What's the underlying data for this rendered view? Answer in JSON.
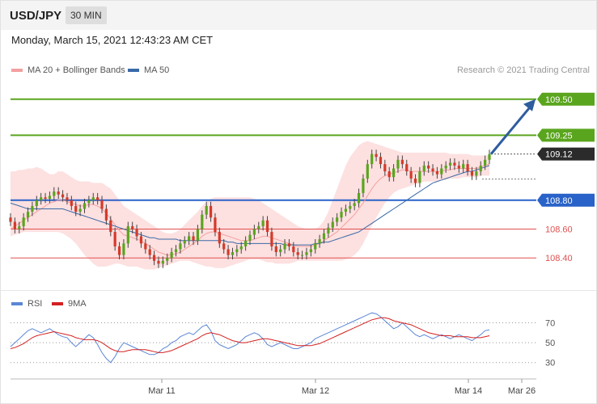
{
  "header": {
    "symbol": "USD/JPY",
    "timeframe": "30 MIN",
    "timestamp": "Monday, March 15, 2021 12:43:23 AM CET",
    "credit": "Research © 2021 Trading Central"
  },
  "legend_main": [
    {
      "label": "MA 20 + Bollinger Bands",
      "color": "#f4a0a0"
    },
    {
      "label": "MA 50",
      "color": "#3a6aa8"
    }
  ],
  "legend_rsi": [
    {
      "label": "RSI",
      "color": "#5b86d6"
    },
    {
      "label": "9MA",
      "color": "#d42020"
    }
  ],
  "colors": {
    "resistance": "#5aa51e",
    "pivot": "#2962c8",
    "support": "#e05050",
    "current": "#2b2b2b",
    "arrow": "#2e5d9e",
    "candle_up": "#5aa51e",
    "candle_down": "#d43a2a",
    "band_fill": "#fde0e0"
  },
  "chart_data": [
    {
      "type": "candlestick",
      "title": "USD/JPY",
      "x_ticks": [
        "Mar 11",
        "Mar 12",
        "Mar 14",
        "Mar 26"
      ],
      "ylim": [
        108.25,
        109.65
      ],
      "levels": [
        {
          "label": "109.50",
          "value": 109.5,
          "kind": "resistance"
        },
        {
          "label": "109.25",
          "value": 109.25,
          "kind": "resistance"
        },
        {
          "label": "109.12",
          "value": 109.12,
          "kind": "current"
        },
        {
          "label": "108.80",
          "value": 108.8,
          "kind": "pivot"
        },
        {
          "label": "108.60",
          "value": 108.6,
          "kind": "support"
        },
        {
          "label": "108.40",
          "value": 108.4,
          "kind": "support"
        }
      ],
      "close": [
        108.65,
        108.6,
        108.62,
        108.68,
        108.72,
        108.76,
        108.8,
        108.82,
        108.81,
        108.83,
        108.86,
        108.84,
        108.82,
        108.8,
        108.76,
        108.72,
        108.74,
        108.78,
        108.8,
        108.82,
        108.8,
        108.74,
        108.66,
        108.58,
        108.48,
        108.42,
        108.5,
        108.62,
        108.6,
        108.55,
        108.5,
        108.46,
        108.42,
        108.38,
        108.36,
        108.38,
        108.4,
        108.44,
        108.46,
        108.5,
        108.52,
        108.55,
        108.52,
        108.6,
        108.7,
        108.76,
        108.68,
        108.58,
        108.5,
        108.46,
        108.42,
        108.44,
        108.46,
        108.48,
        108.52,
        108.56,
        108.6,
        108.62,
        108.66,
        108.58,
        108.48,
        108.44,
        108.46,
        108.5,
        108.48,
        108.44,
        108.42,
        108.42,
        108.44,
        108.46,
        108.5,
        108.53,
        108.57,
        108.61,
        108.65,
        108.68,
        108.72,
        108.74,
        108.76,
        108.78,
        108.85,
        108.95,
        109.05,
        109.12,
        109.1,
        109.05,
        109.0,
        108.96,
        109.02,
        109.08,
        109.05,
        109.0,
        108.95,
        108.92,
        109.0,
        109.04,
        109.02,
        109.0,
        108.98,
        109.02,
        109.04,
        109.06,
        109.04,
        109.02,
        109.05,
        109.0,
        108.97,
        109.0,
        109.04,
        109.08,
        109.12
      ],
      "open": [
        108.68,
        108.65,
        108.6,
        108.62,
        108.68,
        108.72,
        108.76,
        108.8,
        108.82,
        108.81,
        108.83,
        108.86,
        108.84,
        108.82,
        108.8,
        108.76,
        108.72,
        108.74,
        108.78,
        108.8,
        108.82,
        108.8,
        108.74,
        108.66,
        108.58,
        108.48,
        108.42,
        108.5,
        108.62,
        108.6,
        108.55,
        108.5,
        108.46,
        108.42,
        108.38,
        108.36,
        108.38,
        108.4,
        108.44,
        108.46,
        108.5,
        108.52,
        108.55,
        108.52,
        108.6,
        108.7,
        108.76,
        108.68,
        108.58,
        108.5,
        108.46,
        108.42,
        108.44,
        108.46,
        108.48,
        108.52,
        108.56,
        108.6,
        108.62,
        108.66,
        108.58,
        108.48,
        108.44,
        108.46,
        108.5,
        108.48,
        108.44,
        108.42,
        108.42,
        108.44,
        108.46,
        108.5,
        108.53,
        108.57,
        108.61,
        108.65,
        108.68,
        108.72,
        108.74,
        108.76,
        108.78,
        108.85,
        108.95,
        109.05,
        109.12,
        109.1,
        109.05,
        109.0,
        108.96,
        109.02,
        109.08,
        109.05,
        109.0,
        108.95,
        108.92,
        109.0,
        109.04,
        109.02,
        109.0,
        108.98,
        109.02,
        109.04,
        109.06,
        109.04,
        109.02,
        109.05,
        109.0,
        108.97,
        109.0,
        109.04,
        109.08
      ],
      "ma20": [
        108.6,
        108.62,
        108.64,
        108.66,
        108.68,
        108.7,
        108.72,
        108.74,
        108.76,
        108.78,
        108.79,
        108.8,
        108.8,
        108.79,
        108.78,
        108.77,
        108.76,
        108.76,
        108.77,
        108.77,
        108.76,
        108.74,
        108.71,
        108.67,
        108.63,
        108.59,
        108.56,
        108.55,
        108.54,
        108.53,
        108.52,
        108.5,
        108.48,
        108.46,
        108.44,
        108.43,
        108.42,
        108.42,
        108.43,
        108.44,
        108.46,
        108.48,
        108.5,
        108.52,
        108.55,
        108.57,
        108.58,
        108.58,
        108.57,
        108.56,
        108.55,
        108.54,
        108.53,
        108.52,
        108.52,
        108.52,
        108.53,
        108.54,
        108.55,
        108.55,
        108.54,
        108.53,
        108.52,
        108.51,
        108.5,
        108.49,
        108.48,
        108.48,
        108.48,
        108.48,
        108.49,
        108.5,
        108.52,
        108.54,
        108.56,
        108.58,
        108.61,
        108.64,
        108.67,
        108.7,
        108.74,
        108.78,
        108.83,
        108.88,
        108.92,
        108.95,
        108.97,
        108.98,
        108.99,
        109.0,
        109.01,
        109.01,
        109.0,
        109.0,
        109.0,
        109.0,
        109.0,
        109.0,
        109.0,
        109.0,
        109.01,
        109.01,
        109.02,
        109.02,
        109.02,
        109.02,
        109.02,
        109.02,
        109.03,
        109.04,
        109.05
      ],
      "ma50": [
        108.78,
        108.77,
        108.76,
        108.75,
        108.74,
        108.74,
        108.74,
        108.74,
        108.74,
        108.74,
        108.74,
        108.74,
        108.74,
        108.73,
        108.72,
        108.71,
        108.7,
        108.69,
        108.68,
        108.67,
        108.66,
        108.65,
        108.64,
        108.63,
        108.62,
        108.61,
        108.6,
        108.59,
        108.58,
        108.57,
        108.56,
        108.55,
        108.54,
        108.54,
        108.53,
        108.53,
        108.53,
        108.53,
        108.53,
        108.52,
        108.52,
        108.52,
        108.52,
        108.52,
        108.52,
        108.52,
        108.52,
        108.52,
        108.52,
        108.52,
        108.51,
        108.51,
        108.5,
        108.5,
        108.5,
        108.5,
        108.5,
        108.5,
        108.5,
        108.5,
        108.5,
        108.5,
        108.5,
        108.49,
        108.49,
        108.49,
        108.49,
        108.49,
        108.49,
        108.49,
        108.5,
        108.5,
        108.51,
        108.51,
        108.52,
        108.53,
        108.54,
        108.55,
        108.56,
        108.57,
        108.58,
        108.6,
        108.62,
        108.64,
        108.66,
        108.68,
        108.7,
        108.72,
        108.74,
        108.76,
        108.78,
        108.8,
        108.82,
        108.84,
        108.86,
        108.88,
        108.9,
        108.92,
        108.93,
        108.94,
        108.95,
        108.96,
        108.97,
        108.98,
        108.99,
        109.0,
        109.0,
        109.01,
        109.02,
        109.03,
        109.04
      ],
      "band_upper": [
        109.0,
        109.0,
        109.01,
        109.01,
        109.02,
        109.02,
        109.03,
        109.02,
        109.0,
        108.98,
        108.98,
        109.0,
        109.0,
        108.98,
        108.96,
        108.94,
        108.93,
        108.93,
        108.93,
        108.92,
        108.92,
        108.92,
        108.9,
        108.88,
        108.84,
        108.8,
        108.76,
        108.74,
        108.72,
        108.7,
        108.68,
        108.66,
        108.64,
        108.62,
        108.6,
        108.58,
        108.57,
        108.57,
        108.58,
        108.6,
        108.63,
        108.66,
        108.69,
        108.72,
        108.76,
        108.79,
        108.81,
        108.82,
        108.82,
        108.82,
        108.82,
        108.82,
        108.82,
        108.82,
        108.82,
        108.82,
        108.81,
        108.8,
        108.78,
        108.76,
        108.74,
        108.72,
        108.7,
        108.68,
        108.66,
        108.64,
        108.62,
        108.61,
        108.6,
        108.6,
        108.6,
        108.62,
        108.66,
        108.72,
        108.8,
        108.88,
        108.96,
        109.04,
        109.1,
        109.14,
        109.18,
        109.2,
        109.21,
        109.2,
        109.19,
        109.18,
        109.17,
        109.16,
        109.15,
        109.14,
        109.13,
        109.13,
        109.13,
        109.13,
        109.13,
        109.13,
        109.13,
        109.13,
        109.13,
        109.13,
        109.13,
        109.12,
        109.12,
        109.12,
        109.12,
        109.12,
        109.11,
        109.11,
        109.11,
        109.11,
        109.11
      ],
      "band_lower": [
        108.55,
        108.56,
        108.57,
        108.58,
        108.58,
        108.58,
        108.58,
        108.58,
        108.58,
        108.58,
        108.58,
        108.58,
        108.57,
        108.55,
        108.53,
        108.5,
        108.46,
        108.42,
        108.39,
        108.36,
        108.34,
        108.34,
        108.34,
        108.35,
        108.36,
        108.36,
        108.35,
        108.34,
        108.34,
        108.34,
        108.33,
        108.32,
        108.32,
        108.32,
        108.33,
        108.34,
        108.35,
        108.36,
        108.37,
        108.38,
        108.38,
        108.38,
        108.37,
        108.36,
        108.35,
        108.34,
        108.34,
        108.33,
        108.33,
        108.33,
        108.34,
        108.35,
        108.36,
        108.37,
        108.38,
        108.39,
        108.39,
        108.39,
        108.38,
        108.37,
        108.37,
        108.36,
        108.36,
        108.36,
        108.36,
        108.37,
        108.38,
        108.38,
        108.38,
        108.38,
        108.38,
        108.38,
        108.38,
        108.38,
        108.38,
        108.38,
        108.38,
        108.39,
        108.4,
        108.42,
        108.45,
        108.5,
        108.56,
        108.62,
        108.68,
        108.73,
        108.78,
        108.82,
        108.85,
        108.87,
        108.88,
        108.89,
        108.9,
        108.91,
        108.92,
        108.93,
        108.93,
        108.93,
        108.93,
        108.94,
        108.94,
        108.95,
        108.95,
        108.95,
        108.96,
        108.96,
        108.96,
        108.96,
        108.97,
        108.97,
        108.97
      ],
      "forecast": [
        109.12,
        109.5
      ]
    },
    {
      "type": "line",
      "title": "RSI",
      "x_ticks": [
        "Mar 11",
        "Mar 12",
        "Mar 14",
        "Mar 26"
      ],
      "y_ticks": [
        70,
        50,
        30
      ],
      "ylim": [
        20,
        85
      ],
      "series": [
        {
          "name": "RSI",
          "values": [
            46,
            50,
            54,
            58,
            62,
            64,
            62,
            60,
            62,
            64,
            61,
            58,
            56,
            55,
            50,
            46,
            50,
            54,
            58,
            55,
            48,
            40,
            34,
            30,
            36,
            44,
            50,
            48,
            46,
            44,
            42,
            40,
            38,
            38,
            40,
            44,
            46,
            50,
            52,
            56,
            58,
            60,
            58,
            62,
            66,
            68,
            62,
            52,
            48,
            46,
            44,
            46,
            48,
            52,
            56,
            58,
            60,
            58,
            54,
            48,
            46,
            48,
            50,
            48,
            46,
            44,
            44,
            46,
            48,
            50,
            54,
            56,
            58,
            60,
            62,
            64,
            66,
            68,
            70,
            72,
            74,
            76,
            78,
            80,
            79,
            76,
            72,
            68,
            64,
            66,
            70,
            66,
            62,
            58,
            56,
            58,
            56,
            54,
            56,
            58,
            56,
            54,
            56,
            58,
            56,
            54,
            52,
            55,
            58,
            62,
            63
          ]
        },
        {
          "name": "9MA",
          "values": [
            44,
            45,
            47,
            49,
            52,
            55,
            57,
            58,
            59,
            60,
            61,
            60,
            59,
            58,
            57,
            55,
            54,
            53,
            53,
            53,
            52,
            50,
            47,
            44,
            42,
            41,
            41,
            42,
            43,
            43,
            43,
            43,
            42,
            41,
            40,
            40,
            41,
            42,
            44,
            46,
            48,
            50,
            52,
            54,
            57,
            59,
            60,
            59,
            58,
            56,
            54,
            52,
            51,
            50,
            50,
            51,
            52,
            53,
            54,
            54,
            53,
            52,
            51,
            50,
            49,
            48,
            47,
            47,
            47,
            47,
            48,
            49,
            51,
            53,
            55,
            57,
            59,
            61,
            63,
            65,
            67,
            69,
            71,
            73,
            74,
            75,
            75,
            74,
            72,
            71,
            70,
            69,
            68,
            66,
            64,
            62,
            60,
            59,
            58,
            57,
            57,
            57,
            56,
            56,
            56,
            56,
            55,
            55,
            55,
            56,
            57
          ]
        }
      ]
    }
  ]
}
